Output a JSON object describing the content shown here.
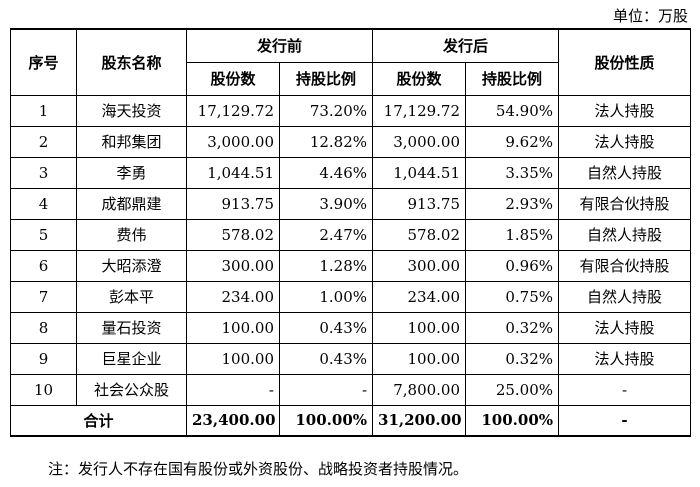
{
  "unit_label": "单位：万股",
  "headers": {
    "index": "序号",
    "name": "股东名称",
    "before": "发行前",
    "after": "发行后",
    "nature": "股份性质",
    "shares": "股份数",
    "ratio": "持股比例"
  },
  "rows": [
    {
      "no": "1",
      "name": "海天投资",
      "b_shares": "17,129.72",
      "b_ratio": "73.20%",
      "a_shares": "17,129.72",
      "a_ratio": "54.90%",
      "nature": "法人持股"
    },
    {
      "no": "2",
      "name": "和邦集团",
      "b_shares": "3,000.00",
      "b_ratio": "12.82%",
      "a_shares": "3,000.00",
      "a_ratio": "9.62%",
      "nature": "法人持股"
    },
    {
      "no": "3",
      "name": "李勇",
      "b_shares": "1,044.51",
      "b_ratio": "4.46%",
      "a_shares": "1,044.51",
      "a_ratio": "3.35%",
      "nature": "自然人持股"
    },
    {
      "no": "4",
      "name": "成都鼎建",
      "b_shares": "913.75",
      "b_ratio": "3.90%",
      "a_shares": "913.75",
      "a_ratio": "2.93%",
      "nature": "有限合伙持股"
    },
    {
      "no": "5",
      "name": "费伟",
      "b_shares": "578.02",
      "b_ratio": "2.47%",
      "a_shares": "578.02",
      "a_ratio": "1.85%",
      "nature": "自然人持股"
    },
    {
      "no": "6",
      "name": "大昭添澄",
      "b_shares": "300.00",
      "b_ratio": "1.28%",
      "a_shares": "300.00",
      "a_ratio": "0.96%",
      "nature": "有限合伙持股"
    },
    {
      "no": "7",
      "name": "彭本平",
      "b_shares": "234.00",
      "b_ratio": "1.00%",
      "a_shares": "234.00",
      "a_ratio": "0.75%",
      "nature": "自然人持股"
    },
    {
      "no": "8",
      "name": "量石投资",
      "b_shares": "100.00",
      "b_ratio": "0.43%",
      "a_shares": "100.00",
      "a_ratio": "0.32%",
      "nature": "法人持股"
    },
    {
      "no": "9",
      "name": "巨星企业",
      "b_shares": "100.00",
      "b_ratio": "0.43%",
      "a_shares": "100.00",
      "a_ratio": "0.32%",
      "nature": "法人持股"
    },
    {
      "no": "10",
      "name": "社会公众股",
      "b_shares": "-",
      "b_ratio": "-",
      "a_shares": "7,800.00",
      "a_ratio": "25.00%",
      "nature": "-"
    }
  ],
  "total": {
    "label": "合计",
    "b_shares": "23,400.00",
    "b_ratio": "100.00%",
    "a_shares": "31,200.00",
    "a_ratio": "100.00%",
    "nature": "-"
  },
  "note": "注：发行人不存在国有股份或外资股份、战略投资者持股情况。"
}
